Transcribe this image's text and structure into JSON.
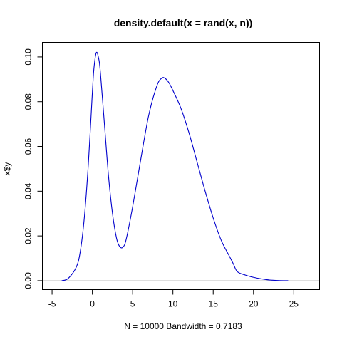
{
  "chart_data": {
    "type": "line",
    "title": "density.default(x = rand(x, n))",
    "xlabel": "N = 10000   Bandwidth = 0.7183",
    "ylabel": "x$y",
    "xlim": [
      -6.2,
      28.2
    ],
    "ylim": [
      -0.004,
      0.1065
    ],
    "x_ticks": [
      -5,
      0,
      5,
      10,
      15,
      20,
      25
    ],
    "y_ticks": [
      0.0,
      0.02,
      0.04,
      0.06,
      0.08,
      0.1
    ],
    "x_tick_labels": [
      "-5",
      "0",
      "5",
      "10",
      "15",
      "20",
      "25"
    ],
    "y_tick_labels": [
      "0.00",
      "0.02",
      "0.04",
      "0.06",
      "0.08",
      "0.10"
    ],
    "grid": false,
    "baseline_y": 0,
    "series": [
      {
        "color": "#0000cc",
        "x": [
          -3.8,
          -3.0,
          -2.0,
          -1.5,
          -1.0,
          -0.5,
          0.0,
          0.2,
          0.5,
          0.8,
          1.0,
          1.5,
          2.0,
          2.5,
          3.0,
          3.4,
          3.8,
          4.2,
          5.0,
          6.0,
          7.0,
          8.0,
          8.6,
          9.0,
          9.5,
          10.0,
          11.0,
          12.0,
          13.0,
          14.0,
          15.0,
          16.0,
          17.0,
          17.5,
          18.0,
          19.0,
          20.0,
          21.0,
          22.0,
          23.0,
          24.3
        ],
        "y": [
          0.0,
          0.001,
          0.006,
          0.013,
          0.028,
          0.052,
          0.084,
          0.095,
          0.102,
          0.099,
          0.093,
          0.07,
          0.047,
          0.03,
          0.019,
          0.0152,
          0.015,
          0.0185,
          0.033,
          0.054,
          0.074,
          0.087,
          0.0905,
          0.0905,
          0.0885,
          0.085,
          0.077,
          0.066,
          0.053,
          0.04,
          0.028,
          0.018,
          0.011,
          0.0075,
          0.004,
          0.0025,
          0.0015,
          0.0008,
          0.0003,
          0.0001,
          0.0
        ]
      }
    ]
  }
}
